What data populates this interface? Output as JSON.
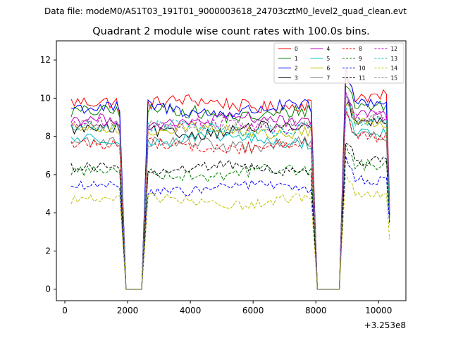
{
  "chart_data": {
    "type": "line",
    "suptitle": "Data file: modeM0/AS1T03_191T01_9000003618_24703cztM0_level2_quad_clean.evt",
    "title": "Quadrant 2 module wise count rates with 100.0s bins.",
    "xlabel": "",
    "ylabel": "",
    "x_offset_label": "+3.253e8",
    "xlim": [
      -270,
      10870
    ],
    "ylim": [
      -0.6,
      13.0
    ],
    "x_ticks": [
      0,
      2000,
      4000,
      6000,
      8000,
      10000
    ],
    "x_tick_labels": [
      "0",
      "2000",
      "4000",
      "6000",
      "8000",
      "10000"
    ],
    "y_ticks": [
      0,
      2,
      4,
      6,
      8,
      10,
      12
    ],
    "y_tick_labels": [
      "0",
      "2",
      "4",
      "6",
      "8",
      "10",
      "12"
    ],
    "grid": false,
    "legend_position": "top-right",
    "legend_columns": 4,
    "segments": [
      {
        "start": 200,
        "end": 1750,
        "points": 16
      },
      {
        "start": 2650,
        "end": 7850,
        "points": 53
      },
      {
        "start": 8950,
        "end": 10250,
        "points": 14
      }
    ],
    "gaps": [
      {
        "start": 1950,
        "end": 2450
      },
      {
        "start": 8050,
        "end": 8750
      }
    ],
    "final_point_x": 10350,
    "series": [
      {
        "name": "0",
        "color": "#ff0000",
        "style": "solid",
        "level": 9.8,
        "noise": 0.35,
        "first_seg_end": 9.1,
        "final": 4.6
      },
      {
        "name": "1",
        "color": "#008000",
        "style": "solid",
        "level": 9.3,
        "noise": 0.35,
        "first_seg_end": 9.0,
        "final": 4.0
      },
      {
        "name": "2",
        "color": "#0000ff",
        "style": "solid",
        "level": 9.5,
        "noise": 0.35,
        "first_seg_end": 9.3,
        "final": 4.2
      },
      {
        "name": "3",
        "color": "#000000",
        "style": "solid",
        "level": 8.4,
        "noise": 0.3,
        "first_seg_end": 8.2,
        "final": 3.8
      },
      {
        "name": "4",
        "color": "#bf00bf",
        "style": "solid",
        "level": 8.9,
        "noise": 0.3,
        "first_seg_end": 8.6,
        "final": 4.1
      },
      {
        "name": "5",
        "color": "#00bfbf",
        "style": "solid",
        "level": 7.9,
        "noise": 0.3,
        "first_seg_end": 7.6,
        "final": 3.6
      },
      {
        "name": "6",
        "color": "#bfbf00",
        "style": "solid",
        "level": 8.4,
        "noise": 0.3,
        "first_seg_end": 8.1,
        "final": 3.7
      },
      {
        "name": "7",
        "color": "#808080",
        "style": "solid",
        "level": 7.7,
        "noise": 0.3,
        "first_seg_end": 7.5,
        "final": 3.5
      },
      {
        "name": "8",
        "color": "#ff0000",
        "style": "dashed",
        "level": 7.6,
        "noise": 0.3,
        "first_seg_end": 7.4,
        "final": 4.4
      },
      {
        "name": "9",
        "color": "#008000",
        "style": "dashed",
        "level": 6.2,
        "noise": 0.3,
        "first_seg_end": 6.1,
        "final": 3.8
      },
      {
        "name": "10",
        "color": "#0000ff",
        "style": "dashed",
        "level": 5.4,
        "noise": 0.25,
        "first_seg_end": 5.3,
        "final": 3.4
      },
      {
        "name": "11",
        "color": "#000000",
        "style": "dashed",
        "level": 6.4,
        "noise": 0.25,
        "first_seg_end": 6.3,
        "final": 3.9
      },
      {
        "name": "12",
        "color": "#bf00bf",
        "style": "dashed",
        "level": 8.7,
        "noise": 0.3,
        "first_seg_end": 8.5,
        "final": 4.3
      },
      {
        "name": "13",
        "color": "#00bfbf",
        "style": "dashed",
        "level": 8.5,
        "noise": 0.3,
        "first_seg_end": 8.3,
        "final": 4.0
      },
      {
        "name": "14",
        "color": "#bfbf00",
        "style": "dashed",
        "level": 4.7,
        "noise": 0.25,
        "first_seg_end": 4.9,
        "final": 2.6
      },
      {
        "name": "15",
        "color": "#808080",
        "style": "dashed",
        "level": 8.6,
        "noise": 0.3,
        "first_seg_end": 8.4,
        "final": 4.2
      }
    ]
  }
}
